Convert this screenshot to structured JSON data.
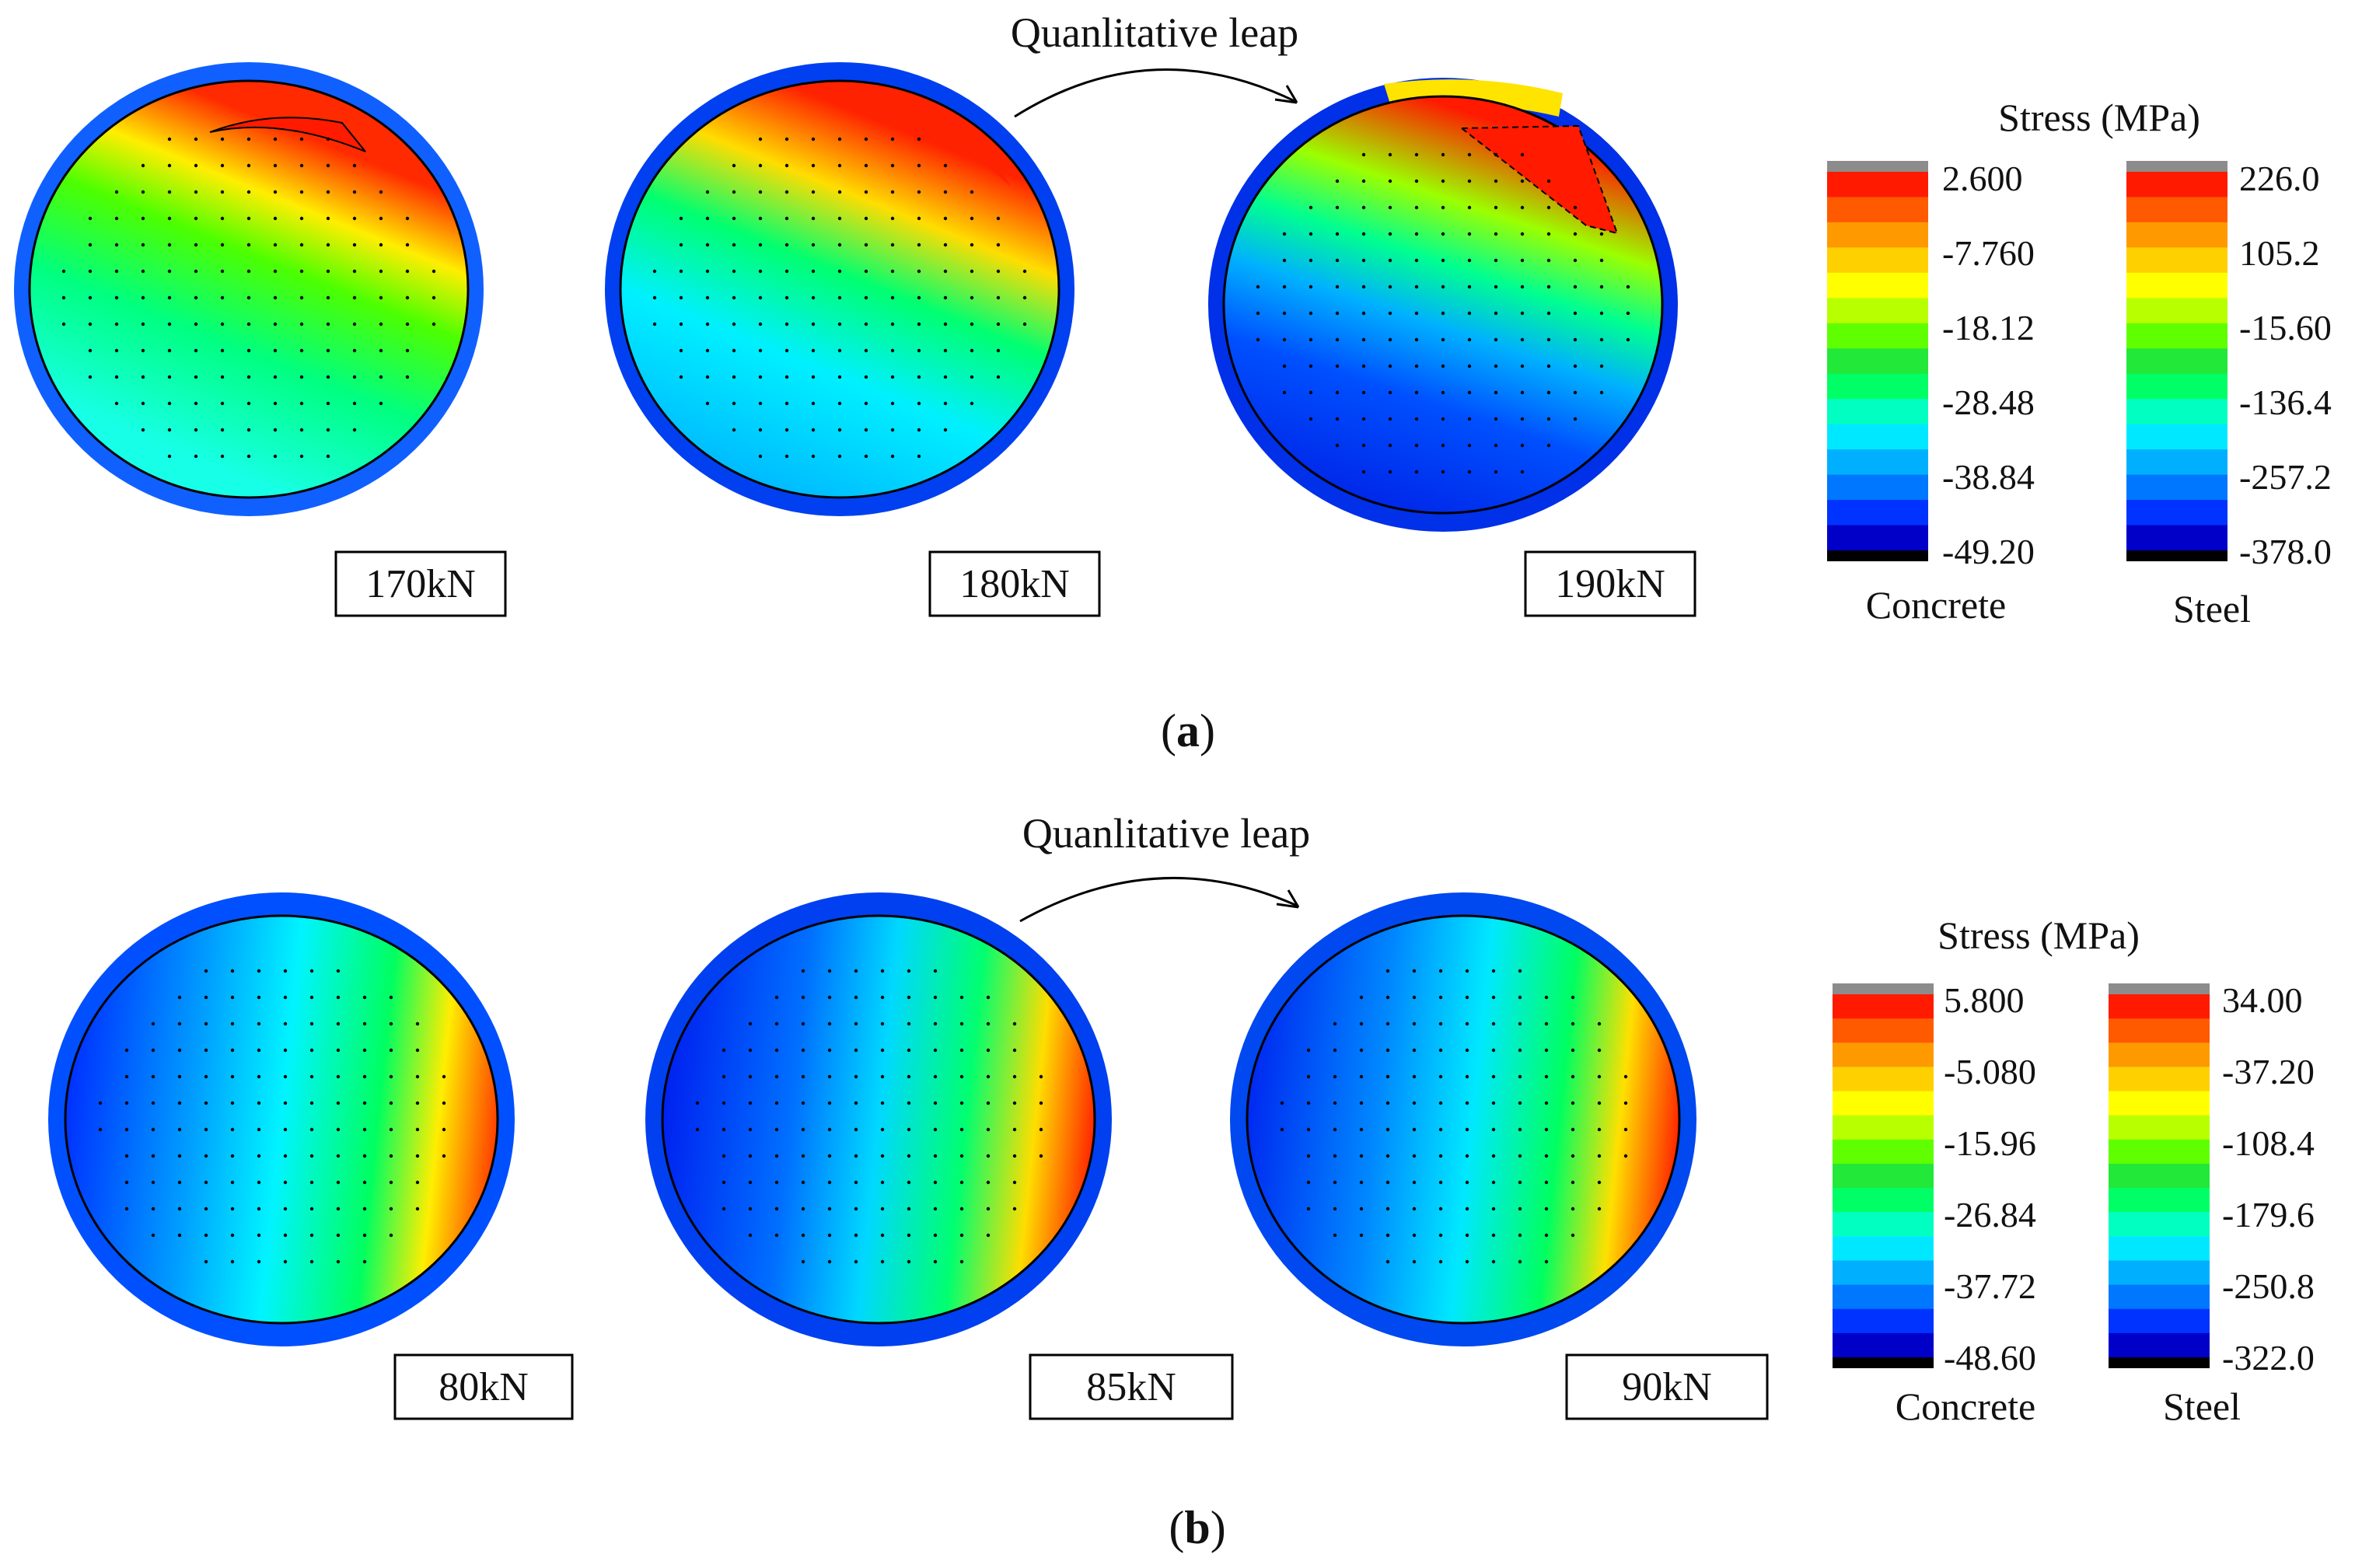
{
  "panels": [
    {
      "id": "a",
      "caption": "a",
      "annotation": "Quanlitative leap",
      "legend": {
        "title": "Stress (MPa)",
        "concrete": {
          "label": "Concrete",
          "ticks": [
            "2.600",
            "-7.760",
            "-18.12",
            "-28.48",
            "-38.84",
            "-49.20"
          ]
        },
        "steel": {
          "label": "Steel",
          "ticks": [
            "226.0",
            "105.2",
            "-15.60",
            "-136.4",
            "-257.2",
            "-378.0"
          ]
        }
      },
      "sections": [
        {
          "load": "170kN"
        },
        {
          "load": "180kN"
        },
        {
          "load": "190kN"
        }
      ]
    },
    {
      "id": "b",
      "caption": "b",
      "annotation": "Quanlitative leap",
      "legend": {
        "title": "Stress (MPa)",
        "concrete": {
          "label": "Concrete",
          "ticks": [
            "5.800",
            "-5.080",
            "-15.96",
            "-26.84",
            "-37.72",
            "-48.60"
          ]
        },
        "steel": {
          "label": "Steel",
          "ticks": [
            "34.00",
            "-37.20",
            "-108.4",
            "-179.6",
            "-250.8",
            "-322.0"
          ]
        }
      },
      "sections": [
        {
          "load": "80kN"
        },
        {
          "load": "85kN"
        },
        {
          "load": "90kN"
        }
      ]
    }
  ],
  "colors": {
    "scale": [
      "#0000c8",
      "#0033ff",
      "#0077ff",
      "#00b0ff",
      "#00e8ff",
      "#00ffc0",
      "#00ff66",
      "#22e83a",
      "#60ff00",
      "#b8ff00",
      "#ffff00",
      "#ffd000",
      "#ff9900",
      "#ff5a00",
      "#ff1a00"
    ],
    "cap_top": "#8c8c8c",
    "cap_bottom": "#000000"
  }
}
